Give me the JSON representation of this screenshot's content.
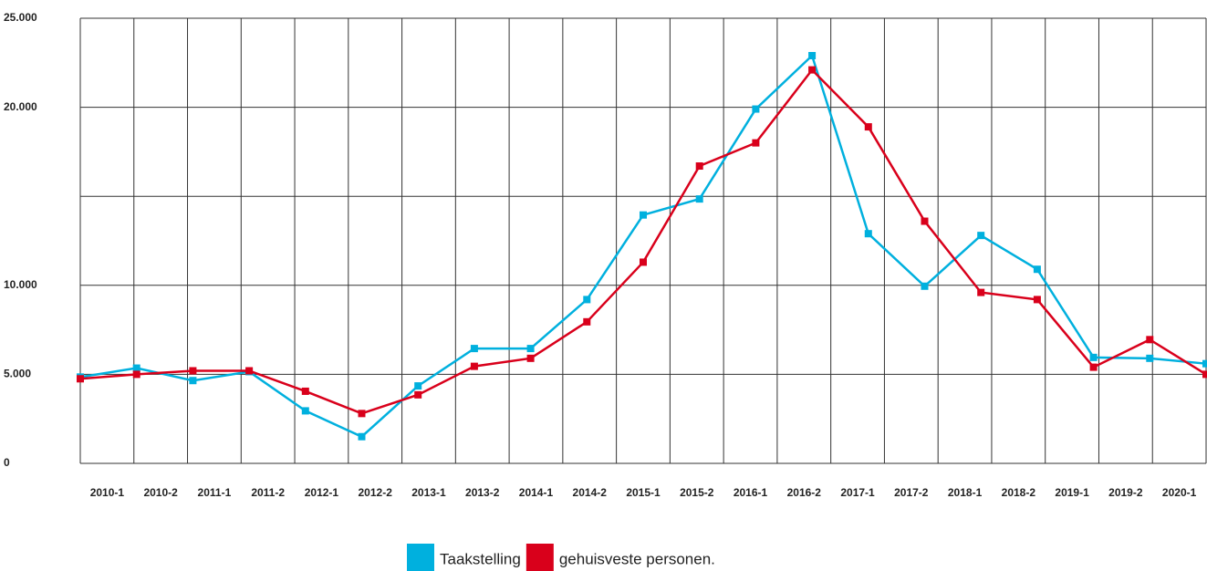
{
  "chart_data": {
    "type": "line",
    "categories": [
      "2010-1",
      "2010-2",
      "2011-1",
      "2011-2",
      "2012-1",
      "2012-2",
      "2013-1",
      "2013-2",
      "2014-1",
      "2014-2",
      "2015-1",
      "2015-2",
      "2016-1",
      "2016-2",
      "2017-1",
      "2017-2",
      "2018-1",
      "2018-2",
      "2019-1",
      "2019-2",
      "2020-1"
    ],
    "series": [
      {
        "name": "Taakstelling",
        "color": "#00b0de",
        "values": [
          4850,
          5350,
          4650,
          5150,
          2950,
          1500,
          4350,
          6450,
          6450,
          9200,
          13950,
          14850,
          19900,
          22900,
          12900,
          9950,
          12800,
          10900,
          5950,
          5900,
          5600
        ]
      },
      {
        "name": "gehuisveste personen.",
        "color": "#d9001b",
        "values": [
          4750,
          5000,
          5200,
          5200,
          4050,
          2800,
          3850,
          5450,
          5900,
          7950,
          11300,
          16700,
          18000,
          22100,
          18900,
          13600,
          9600,
          9200,
          5400,
          6950,
          5000
        ]
      }
    ],
    "ylim": [
      0,
      25000
    ],
    "yticks": [
      {
        "value": 0,
        "label": "0"
      },
      {
        "value": 5000,
        "label": "5.000"
      },
      {
        "value": 10000,
        "label": "10.000"
      },
      {
        "value": 20000,
        "label": "20.000"
      },
      {
        "value": 25000,
        "label": "25.000"
      }
    ],
    "ygrid": [
      0,
      5000,
      10000,
      15000,
      20000,
      25000
    ],
    "grid": true,
    "legend": "bottom"
  }
}
